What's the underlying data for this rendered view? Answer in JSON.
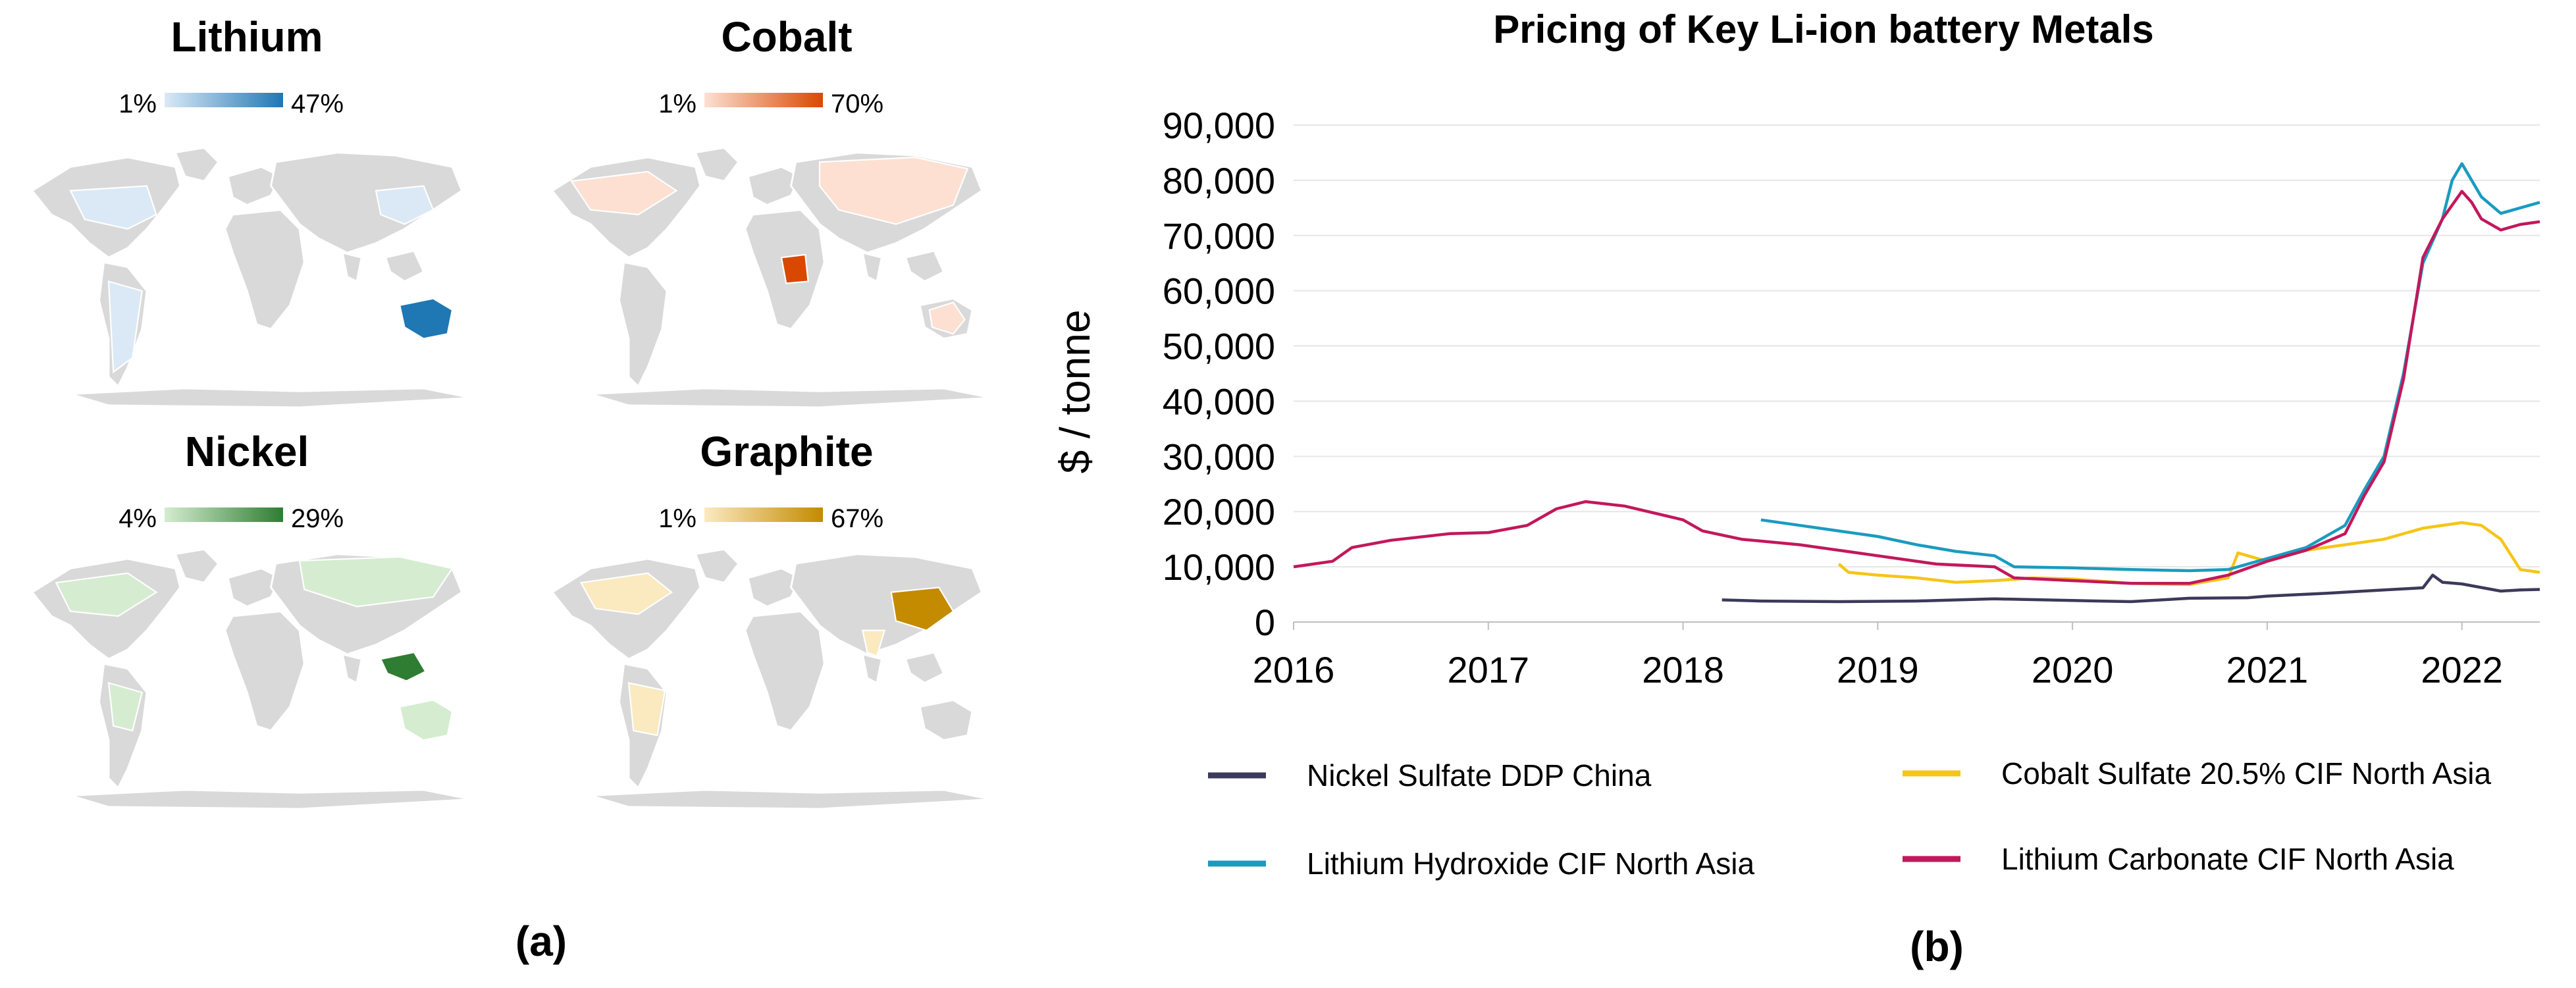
{
  "panel_a": {
    "label": "(a)",
    "maps": [
      {
        "name": "Lithium",
        "scale_min": "1%",
        "scale_max": "47%",
        "color_light": "#dbe9f6",
        "color_dark": "#1f77b4"
      },
      {
        "name": "Cobalt",
        "scale_min": "1%",
        "scale_max": "70%",
        "color_light": "#fde0d2",
        "color_dark": "#d94801"
      },
      {
        "name": "Nickel",
        "scale_min": "4%",
        "scale_max": "29%",
        "color_light": "#d5ecd0",
        "color_dark": "#2e7d32"
      },
      {
        "name": "Graphite",
        "scale_min": "1%",
        "scale_max": "67%",
        "color_light": "#fbeac0",
        "color_dark": "#c48a00"
      }
    ]
  },
  "panel_b": {
    "label": "(b)"
  },
  "chart_data": {
    "type": "line",
    "title": "Pricing of Key Li-ion battery Metals",
    "ylabel": "$ / tonne",
    "xlabel": "",
    "xlim": [
      2016,
      2022.4
    ],
    "ylim": [
      0,
      90000
    ],
    "yticks": [
      0,
      10000,
      20000,
      30000,
      40000,
      50000,
      60000,
      70000,
      80000,
      90000
    ],
    "ytick_labels": [
      "0",
      "10,000",
      "20,000",
      "30,000",
      "40,000",
      "50,000",
      "60,000",
      "70,000",
      "80,000",
      "90,000"
    ],
    "xticks": [
      2016,
      2017,
      2018,
      2019,
      2020,
      2021,
      2022
    ],
    "xtick_labels": [
      "2016",
      "2017",
      "2018",
      "2019",
      "2020",
      "2021",
      "2022"
    ],
    "grid": "horizontal",
    "legend_position": "bottom",
    "series": [
      {
        "name": "Nickel Sulfate DDP China",
        "color": "#3b3a5a",
        "x": [
          2018.2,
          2018.4,
          2018.8,
          2019.2,
          2019.6,
          2020.0,
          2020.3,
          2020.6,
          2020.9,
          2021.0,
          2021.3,
          2021.6,
          2021.8,
          2021.85,
          2021.9,
          2022.0,
          2022.2,
          2022.3,
          2022.4
        ],
        "y": [
          4000,
          3800,
          3700,
          3800,
          4200,
          3900,
          3700,
          4300,
          4400,
          4700,
          5200,
          5800,
          6200,
          8500,
          7200,
          6900,
          5600,
          5800,
          5900
        ]
      },
      {
        "name": "Cobalt Sulfate 20.5% CIF North Asia",
        "color": "#f5c518",
        "x": [
          2018.8,
          2018.85,
          2019.0,
          2019.2,
          2019.4,
          2019.6,
          2019.8,
          2020.0,
          2020.3,
          2020.6,
          2020.8,
          2020.85,
          2021.0,
          2021.2,
          2021.4,
          2021.6,
          2021.8,
          2022.0,
          2022.1,
          2022.2,
          2022.3,
          2022.4
        ],
        "y": [
          10500,
          9000,
          8500,
          8000,
          7200,
          7500,
          8000,
          7800,
          7000,
          6800,
          8000,
          12500,
          11000,
          13000,
          14000,
          15000,
          17000,
          18000,
          17500,
          15000,
          9500,
          9000
        ]
      },
      {
        "name": "Lithium Hydroxide CIF North Asia",
        "color": "#1a9bbf",
        "x": [
          2018.4,
          2018.6,
          2018.8,
          2019.0,
          2019.2,
          2019.4,
          2019.6,
          2019.7,
          2020.0,
          2020.3,
          2020.6,
          2020.8,
          2021.0,
          2021.2,
          2021.4,
          2021.5,
          2021.6,
          2021.7,
          2021.8,
          2021.9,
          2021.95,
          2022.0,
          2022.1,
          2022.2,
          2022.3,
          2022.4
        ],
        "y": [
          18500,
          17500,
          16500,
          15500,
          14000,
          12800,
          12000,
          10000,
          9800,
          9500,
          9300,
          9500,
          11500,
          13500,
          17500,
          24000,
          30000,
          45000,
          65000,
          73000,
          80000,
          83000,
          77000,
          74000,
          75000,
          76000
        ]
      },
      {
        "name": "Lithium Carbonate CIF North Asia",
        "color": "#c2185b",
        "x": [
          2016.0,
          2016.2,
          2016.3,
          2016.5,
          2016.8,
          2017.0,
          2017.2,
          2017.35,
          2017.5,
          2017.7,
          2018.0,
          2018.1,
          2018.3,
          2018.6,
          2019.0,
          2019.3,
          2019.6,
          2019.7,
          2020.0,
          2020.3,
          2020.6,
          2020.8,
          2021.0,
          2021.2,
          2021.4,
          2021.5,
          2021.6,
          2021.7,
          2021.8,
          2021.9,
          2022.0,
          2022.05,
          2022.1,
          2022.2,
          2022.3,
          2022.4
        ],
        "y": [
          10000,
          11000,
          13500,
          14800,
          16000,
          16200,
          17500,
          20500,
          21800,
          21000,
          18500,
          16500,
          15000,
          14000,
          12000,
          10500,
          10000,
          8000,
          7500,
          7000,
          7000,
          8500,
          11000,
          13000,
          16000,
          23000,
          29000,
          44000,
          66000,
          73000,
          78000,
          76000,
          73000,
          71000,
          72000,
          72500
        ]
      }
    ]
  }
}
